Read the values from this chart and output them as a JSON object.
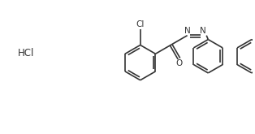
{
  "bg_color": "#ffffff",
  "line_color": "#333333",
  "text_color": "#333333",
  "line_width": 1.2,
  "font_size": 7.5,
  "hcl_label": "HCl",
  "cl_label": "Cl",
  "n_label": "N",
  "o_label": "O"
}
